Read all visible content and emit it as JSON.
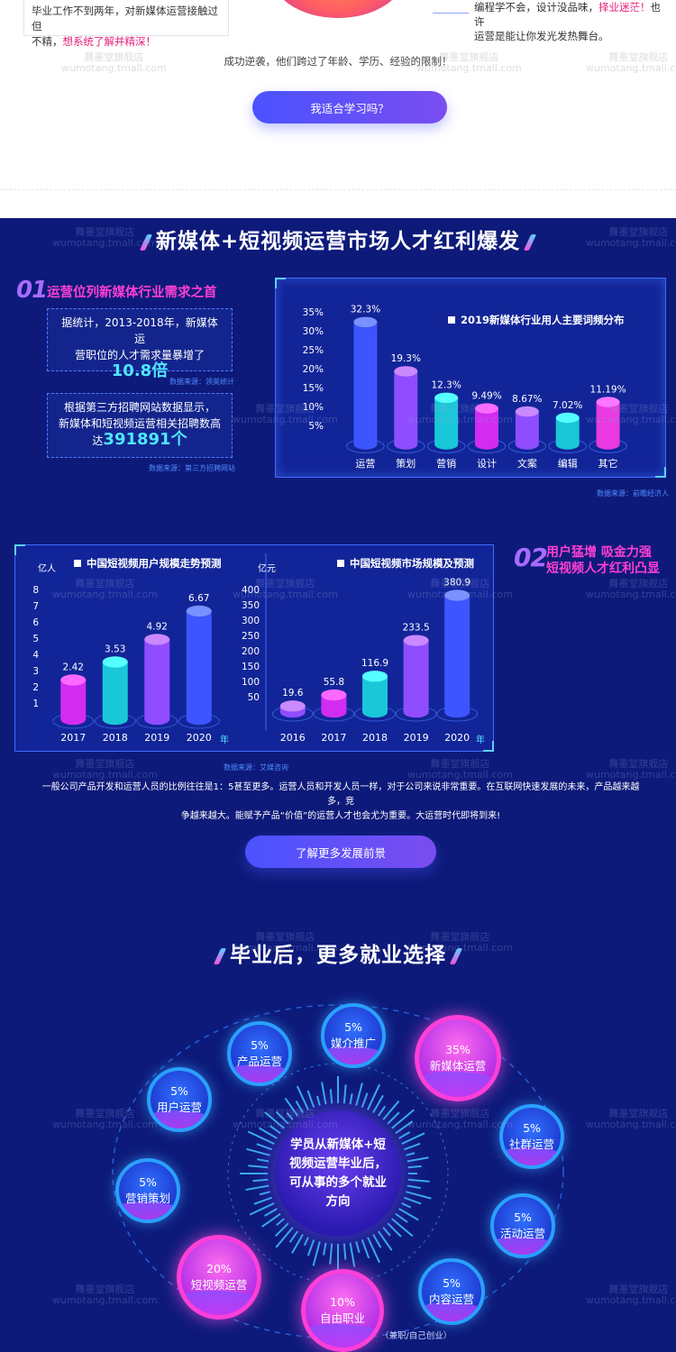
{
  "top": {
    "left_card": {
      "line1": "毕业工作不到两年，对新媒体运营接触过但",
      "line2_prefix": "不精，",
      "line2_highlight": "想系统了解并精深！"
    },
    "right_card": {
      "line1_prefix": "编程学不会，设计没品味，",
      "line1_highlight": "择业迷茫！",
      "line1_suffix": "也许",
      "line2": "运营是能让你发光发热舞台。"
    },
    "note": "成功逆袭，他们跨过了年龄、学历、经验的限制！",
    "button": "我适合学习吗？"
  },
  "watermark": {
    "line1": "舞墨堂旗舰店",
    "line2": "wumotang.tmall.com"
  },
  "section1": {
    "title": "新媒体+短视频运营市场人才红利爆发",
    "num": "01",
    "heading": "运营位列新媒体行业需求之首",
    "stat1": {
      "text1": "据统计，2013-2018年，新媒体运",
      "text2": "营职位的人才需求量暴增了",
      "big": "10.8倍",
      "source": "数据来源：领英统计"
    },
    "stat2": {
      "text1": "根据第三方招聘网站数据显示，",
      "text2": "新媒体和短视频运营相关招聘数高",
      "prefix": "达",
      "big": "391891个",
      "source": "数据来源：第三方招聘网站"
    },
    "chart_source": "数据来源：前瞻经济人"
  },
  "section2": {
    "num": "02",
    "heading1": "用户猛增 吸金力强",
    "heading2": "短视频人才红利凸显",
    "source": "数据来源：艾媒咨询",
    "para1": "一般公司产品开发和运营人员的比例往往是1：5甚至更多。运营人员和开发人员一样，对于公司来说非常重要。在互联网快速发展的未来，产品越来越多，竞",
    "para2": "争越来越大。能赋予产品“价值”的运营人才也会尤为重要。大运营时代即将到来!",
    "button": "了解更多发展前景"
  },
  "section3": {
    "title": "毕业后，更多就业选择",
    "center": "学员从新媒体+短视频运营毕业后，可从事的多个就业方向",
    "footnote": "（兼职/自己创业）",
    "bubbles": [
      {
        "pct": "5%",
        "label": "产品运营"
      },
      {
        "pct": "5%",
        "label": "媒介推广"
      },
      {
        "pct": "35%",
        "label": "新媒体运营"
      },
      {
        "pct": "5%",
        "label": "用户运营"
      },
      {
        "pct": "5%",
        "label": "社群运营"
      },
      {
        "pct": "5%",
        "label": "营销策划"
      },
      {
        "pct": "5%",
        "label": "活动运营"
      },
      {
        "pct": "20%",
        "label": "短视频运营"
      },
      {
        "pct": "5%",
        "label": "内容运营"
      },
      {
        "pct": "10%",
        "label": "自由职业"
      }
    ]
  },
  "colors": {
    "bg": "#0d1a7a",
    "accent_pink": "#ff3fd3",
    "accent_cyan": "#4fe6ff",
    "button": "#5b50f5"
  },
  "chart_data": [
    {
      "type": "bar",
      "title": "2019新媒体行业用人主要词频分布",
      "categories": [
        "运营",
        "策划",
        "营销",
        "设计",
        "文案",
        "编辑",
        "其它"
      ],
      "values": [
        32.3,
        19.3,
        12.3,
        9.49,
        8.67,
        7.02,
        11.19
      ],
      "value_labels": [
        "32.3%",
        "19.3%",
        "12.3%",
        "9.49%",
        "8.67%",
        "7.02%",
        "11.19%"
      ],
      "yticks": [
        "35%",
        "30%",
        "25%",
        "20%",
        "15%",
        "10%",
        "5%"
      ],
      "ylim": [
        0,
        35
      ],
      "colors": [
        "#3d55ff",
        "#8f4dff",
        "#19c7d8",
        "#d22cf0",
        "#8f4dff",
        "#19c7d8",
        "#e83ae0"
      ]
    },
    {
      "type": "bar",
      "title": "中国短视频用户规模走势预测",
      "ylabel": "亿人",
      "xlabel": "年",
      "categories": [
        "2017",
        "2018",
        "2019",
        "2020"
      ],
      "values": [
        2.42,
        3.53,
        4.92,
        6.67
      ],
      "value_labels": [
        "2.42",
        "3.53",
        "4.92",
        "6.67"
      ],
      "yticks": [
        "8",
        "7",
        "6",
        "5",
        "4",
        "3",
        "2",
        "1"
      ],
      "ylim": [
        0,
        8
      ],
      "colors": [
        "#d22cf0",
        "#19c7d8",
        "#8f4dff",
        "#3d55ff"
      ]
    },
    {
      "type": "bar",
      "title": "中国短视频市场规模及预测",
      "ylabel": "亿元",
      "xlabel": "年",
      "categories": [
        "2016",
        "2017",
        "2018",
        "2019",
        "2020"
      ],
      "values": [
        19.6,
        55.8,
        116.9,
        233.5,
        380.9
      ],
      "value_labels": [
        "19.6",
        "55.8",
        "116.9",
        "233.5",
        "380.9"
      ],
      "yticks": [
        "400",
        "350",
        "300",
        "250",
        "200",
        "150",
        "100",
        "50"
      ],
      "ylim": [
        0,
        400
      ],
      "colors": [
        "#8f4dff",
        "#d22cf0",
        "#19c7d8",
        "#8f4dff",
        "#3d55ff"
      ]
    }
  ]
}
